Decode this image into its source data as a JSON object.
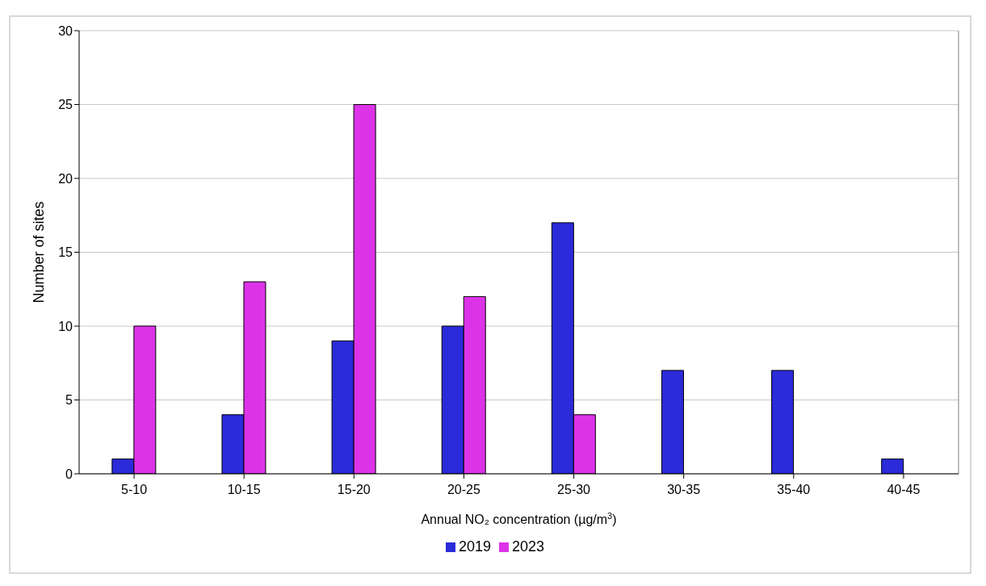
{
  "chart_data": {
    "type": "bar",
    "xlabel": "Annual NO₂ concentration (µg/m$^{3}$)",
    "ylabel": "Number of sites",
    "categories": [
      "5-10",
      "10-15",
      "15-20",
      "20-25",
      "25-30",
      "30-35",
      "35-40",
      "40-45"
    ],
    "series": [
      {
        "name": "2019",
        "color": "#2b2bd9",
        "values": [
          1,
          4,
          9,
          10,
          17,
          7,
          7,
          1
        ]
      },
      {
        "name": "2023",
        "color": "#dd33e8",
        "values": [
          10,
          13,
          25,
          12,
          4,
          0,
          0,
          0
        ]
      }
    ],
    "ylim": [
      0,
      30
    ],
    "yticks": [
      0,
      5,
      10,
      15,
      20,
      25,
      30
    ],
    "grid": "y",
    "legend": "bottom"
  }
}
